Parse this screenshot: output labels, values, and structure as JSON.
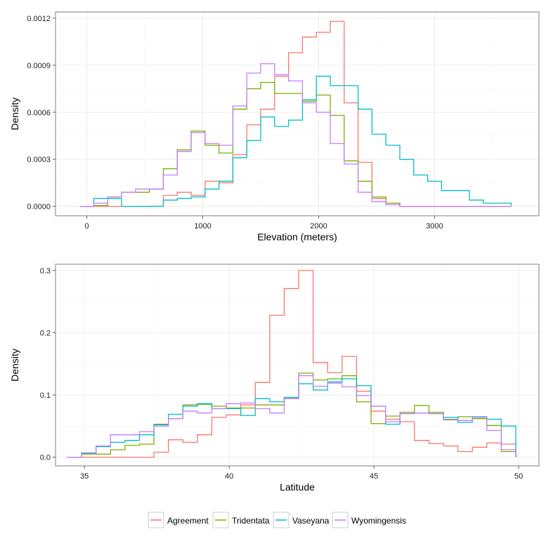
{
  "legend": {
    "placement": "bottom",
    "entries": [
      {
        "name": "Agreement",
        "color": "#F8766D"
      },
      {
        "name": "Tridentata",
        "color": "#7CAE00"
      },
      {
        "name": "Vaseyana",
        "color": "#00BFC4"
      },
      {
        "name": "Wyomingensis",
        "color": "#C77CFF"
      }
    ]
  },
  "chart_data": [
    {
      "type": "histogram-step",
      "xlabel": "Elevation (meters)",
      "ylabel": "Density",
      "xlim": [
        -270,
        3900
      ],
      "ylim": [
        -6e-05,
        0.00124
      ],
      "xticks": [
        0,
        1000,
        2000,
        3000
      ],
      "xtick_labels": [
        "0",
        "1000",
        "2000",
        "3000"
      ],
      "yticks": [
        0,
        0.0003,
        0.0006,
        0.0009,
        0.0012
      ],
      "ytick_labels": [
        "0.0000",
        "0.0003",
        "0.0006",
        "0.0009",
        "0.0012"
      ],
      "grid": true,
      "bin_edges": [
        -60,
        60,
        180,
        300,
        420,
        540,
        660,
        780,
        900,
        1020,
        1140,
        1260,
        1380,
        1500,
        1620,
        1740,
        1860,
        1980,
        2100,
        2220,
        2340,
        2460,
        2580,
        2700,
        2820,
        2940,
        3060,
        3180,
        3300,
        3420,
        3540,
        3660
      ],
      "series": [
        {
          "name": "Agreement",
          "values": [
            0,
            0,
            0,
            0,
            0,
            1e-06,
            7e-05,
            9e-05,
            7e-05,
            0.00016,
            0.00015,
            0.00033,
            0.00052,
            0.00062,
            0.00083,
            0.00098,
            0.00108,
            0.00111,
            0.00118,
            0.00066,
            0.00028,
            5e-05,
            2e-05,
            0,
            0,
            0,
            0,
            0,
            0,
            0,
            0
          ]
        },
        {
          "name": "Tridentata",
          "values": [
            0,
            5e-06,
            6e-05,
            9e-05,
            9e-05,
            0.00011,
            0.00024,
            0.00036,
            0.00048,
            0.00039,
            0.00034,
            0.00062,
            0.00075,
            0.00079,
            0.00072,
            0.00072,
            0.00067,
            0.00071,
            0.00058,
            0.00029,
            0.00016,
            6e-05,
            2e-05,
            0,
            0,
            0,
            0,
            0,
            0,
            0,
            0
          ]
        },
        {
          "name": "Vaseyana",
          "values": [
            0,
            5e-05,
            5e-05,
            0,
            0,
            0,
            4e-05,
            5e-05,
            6e-05,
            0.00011,
            0.00016,
            0.00031,
            0.00042,
            0.00057,
            0.00051,
            0.00055,
            0.00068,
            0.00083,
            0.00077,
            0.00077,
            0.00062,
            0.00046,
            0.00039,
            0.0003,
            0.0002,
            0.00016,
            0.0001,
            0.0001,
            4e-05,
            2e-05,
            2e-05
          ]
        },
        {
          "name": "Wyomingensis",
          "values": [
            0,
            2e-05,
            6e-05,
            9e-05,
            0.00011,
            0.00011,
            0.0002,
            0.00035,
            0.00047,
            0.0004,
            0.00039,
            0.00064,
            0.00085,
            0.00091,
            0.00084,
            0.0008,
            0.00066,
            0.0006,
            0.0004,
            0.00027,
            9e-05,
            3e-05,
            1e-05,
            0,
            0,
            0,
            0,
            0,
            0,
            0,
            0
          ]
        }
      ]
    },
    {
      "type": "histogram-step",
      "xlabel": "Latitude",
      "ylabel": "Density",
      "xlim": [
        34.0,
        50.7
      ],
      "ylim": [
        -0.014,
        0.31
      ],
      "xticks": [
        35,
        40,
        45,
        50
      ],
      "xtick_labels": [
        "35",
        "40",
        "45",
        "50"
      ],
      "yticks": [
        0,
        0.1,
        0.2,
        0.3
      ],
      "ytick_labels": [
        "0.0",
        "0.1",
        "0.2",
        "0.3"
      ],
      "grid": true,
      "bin_edges": [
        34.4,
        34.9,
        35.4,
        35.9,
        36.4,
        36.9,
        37.4,
        37.9,
        38.4,
        38.9,
        39.4,
        39.9,
        40.4,
        40.9,
        41.4,
        41.9,
        42.4,
        42.9,
        43.4,
        43.9,
        44.4,
        44.9,
        45.4,
        45.9,
        46.4,
        46.9,
        47.4,
        47.9,
        48.4,
        48.9,
        49.4,
        49.9
      ],
      "series": [
        {
          "name": "Agreement",
          "values": [
            0,
            0,
            0,
            0,
            0,
            0,
            0.008,
            0.028,
            0.024,
            0.036,
            0.064,
            0.068,
            0.084,
            0.12,
            0.228,
            0.271,
            0.3,
            0.152,
            0.136,
            0.162,
            0.106,
            0.074,
            0.061,
            0.057,
            0.027,
            0.022,
            0.018,
            0.009,
            0.016,
            0.023,
            0.021
          ]
        },
        {
          "name": "Tridentata",
          "values": [
            0,
            0.005,
            0.005,
            0.012,
            0.019,
            0.021,
            0.053,
            0.062,
            0.084,
            0.085,
            0.082,
            0.079,
            0.079,
            0.084,
            0.084,
            0.096,
            0.135,
            0.124,
            0.126,
            0.131,
            0.089,
            0.054,
            0.066,
            0.072,
            0.083,
            0.072,
            0.06,
            0.065,
            0.062,
            0.051,
            0.009
          ]
        },
        {
          "name": "Vaseyana",
          "values": [
            0,
            0.007,
            0.017,
            0.024,
            0.027,
            0.036,
            0.052,
            0.069,
            0.082,
            0.086,
            0.078,
            0.078,
            0.067,
            0.094,
            0.089,
            0.096,
            0.118,
            0.108,
            0.121,
            0.126,
            0.115,
            0.082,
            0.053,
            0.07,
            0.071,
            0.07,
            0.064,
            0.056,
            0.065,
            0.061,
            0.05
          ]
        },
        {
          "name": "Wyomingensis",
          "values": [
            0,
            0.006,
            0.018,
            0.036,
            0.036,
            0.041,
            0.05,
            0.062,
            0.074,
            0.071,
            0.078,
            0.086,
            0.087,
            0.078,
            0.071,
            0.094,
            0.131,
            0.114,
            0.119,
            0.113,
            0.099,
            0.082,
            0.057,
            0.07,
            0.071,
            0.07,
            0.061,
            0.059,
            0.064,
            0.043,
            0.012
          ]
        }
      ]
    }
  ]
}
